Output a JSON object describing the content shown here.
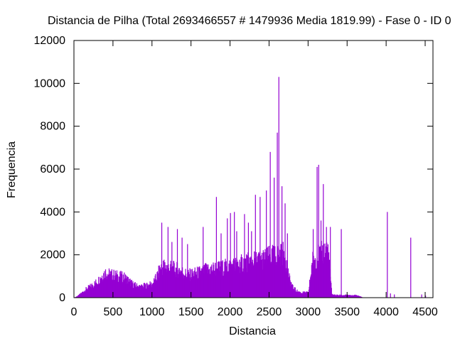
{
  "chart_data": {
    "type": "bar",
    "title": "Distancia de Pilha (Total 2693466557 # 1479936 Media 1819.99) - Fase  0 - ID 0",
    "xlabel": "Distancia",
    "ylabel": "Frequencia",
    "xlim": [
      0,
      4600
    ],
    "ylim": [
      0,
      12000
    ],
    "xticks": [
      0,
      500,
      1000,
      1500,
      2000,
      2500,
      3000,
      3500,
      4000,
      4500
    ],
    "yticks": [
      0,
      2000,
      4000,
      6000,
      8000,
      10000,
      12000
    ],
    "bar_color": "#9400d3",
    "grid": false,
    "legend": "none",
    "series": [
      {
        "type": "envelope",
        "points": [
          [
            0,
            0
          ],
          [
            50,
            120
          ],
          [
            100,
            300
          ],
          [
            150,
            500
          ],
          [
            200,
            650
          ],
          [
            250,
            800
          ],
          [
            300,
            1000
          ],
          [
            350,
            1300
          ],
          [
            400,
            1500
          ],
          [
            450,
            1400
          ],
          [
            500,
            1350
          ],
          [
            550,
            1300
          ],
          [
            600,
            1250
          ],
          [
            650,
            1200
          ],
          [
            700,
            1000
          ],
          [
            750,
            800
          ],
          [
            800,
            700
          ],
          [
            850,
            650
          ],
          [
            900,
            700
          ],
          [
            950,
            750
          ],
          [
            1000,
            800
          ],
          [
            1050,
            1200
          ],
          [
            1100,
            1700
          ],
          [
            1150,
            1900
          ],
          [
            1200,
            1800
          ],
          [
            1250,
            1750
          ],
          [
            1300,
            1700
          ],
          [
            1350,
            1650
          ],
          [
            1400,
            1500
          ],
          [
            1450,
            1350
          ],
          [
            1500,
            1400
          ],
          [
            1550,
            1450
          ],
          [
            1600,
            1500
          ],
          [
            1650,
            1600
          ],
          [
            1700,
            1650
          ],
          [
            1750,
            1700
          ],
          [
            1800,
            1750
          ],
          [
            1850,
            1750
          ],
          [
            1900,
            1800
          ],
          [
            1950,
            1850
          ],
          [
            2000,
            1900
          ],
          [
            2050,
            1950
          ],
          [
            2100,
            2000
          ],
          [
            2150,
            2050
          ],
          [
            2200,
            2100
          ],
          [
            2250,
            2150
          ],
          [
            2300,
            2200
          ],
          [
            2350,
            2250
          ],
          [
            2400,
            2300
          ],
          [
            2450,
            2350
          ],
          [
            2500,
            2450
          ],
          [
            2550,
            2500
          ],
          [
            2600,
            2550
          ],
          [
            2650,
            2600
          ],
          [
            2700,
            2650
          ],
          [
            2750,
            1200
          ],
          [
            2800,
            600
          ],
          [
            2850,
            400
          ],
          [
            2900,
            300
          ],
          [
            2950,
            300
          ],
          [
            3000,
            300
          ],
          [
            3050,
            2200
          ],
          [
            3100,
            2400
          ],
          [
            3150,
            2600
          ],
          [
            3200,
            2800
          ],
          [
            3250,
            2900
          ],
          [
            3300,
            200
          ],
          [
            3350,
            150
          ],
          [
            3400,
            150
          ],
          [
            3450,
            150
          ],
          [
            3500,
            150
          ],
          [
            3550,
            120
          ],
          [
            3600,
            150
          ],
          [
            3650,
            100
          ],
          [
            3700,
            0
          ]
        ]
      },
      {
        "type": "spikes",
        "points": [
          [
            1120,
            3500
          ],
          [
            1200,
            3300
          ],
          [
            1250,
            2600
          ],
          [
            1320,
            3200
          ],
          [
            1380,
            2800
          ],
          [
            1450,
            2500
          ],
          [
            1650,
            3300
          ],
          [
            1820,
            4700
          ],
          [
            1880,
            3000
          ],
          [
            1960,
            3700
          ],
          [
            2000,
            3950
          ],
          [
            2050,
            4000
          ],
          [
            2080,
            3100
          ],
          [
            2180,
            3900
          ],
          [
            2230,
            3500
          ],
          [
            2270,
            3100
          ],
          [
            2320,
            4800
          ],
          [
            2380,
            4700
          ],
          [
            2460,
            5000
          ],
          [
            2510,
            6800
          ],
          [
            2560,
            5600
          ],
          [
            2600,
            7700
          ],
          [
            2620,
            10300
          ],
          [
            2660,
            5200
          ],
          [
            2700,
            4400
          ],
          [
            2730,
            3000
          ],
          [
            3060,
            3200
          ],
          [
            3110,
            6100
          ],
          [
            3130,
            6200
          ],
          [
            3160,
            3600
          ],
          [
            3190,
            5300
          ],
          [
            3230,
            3300
          ],
          [
            3280,
            3300
          ],
          [
            3420,
            3200
          ],
          [
            4010,
            4000
          ],
          [
            4310,
            2800
          ],
          [
            4050,
            200
          ],
          [
            4100,
            150
          ],
          [
            4450,
            150
          ],
          [
            4500,
            100
          ]
        ]
      }
    ]
  }
}
